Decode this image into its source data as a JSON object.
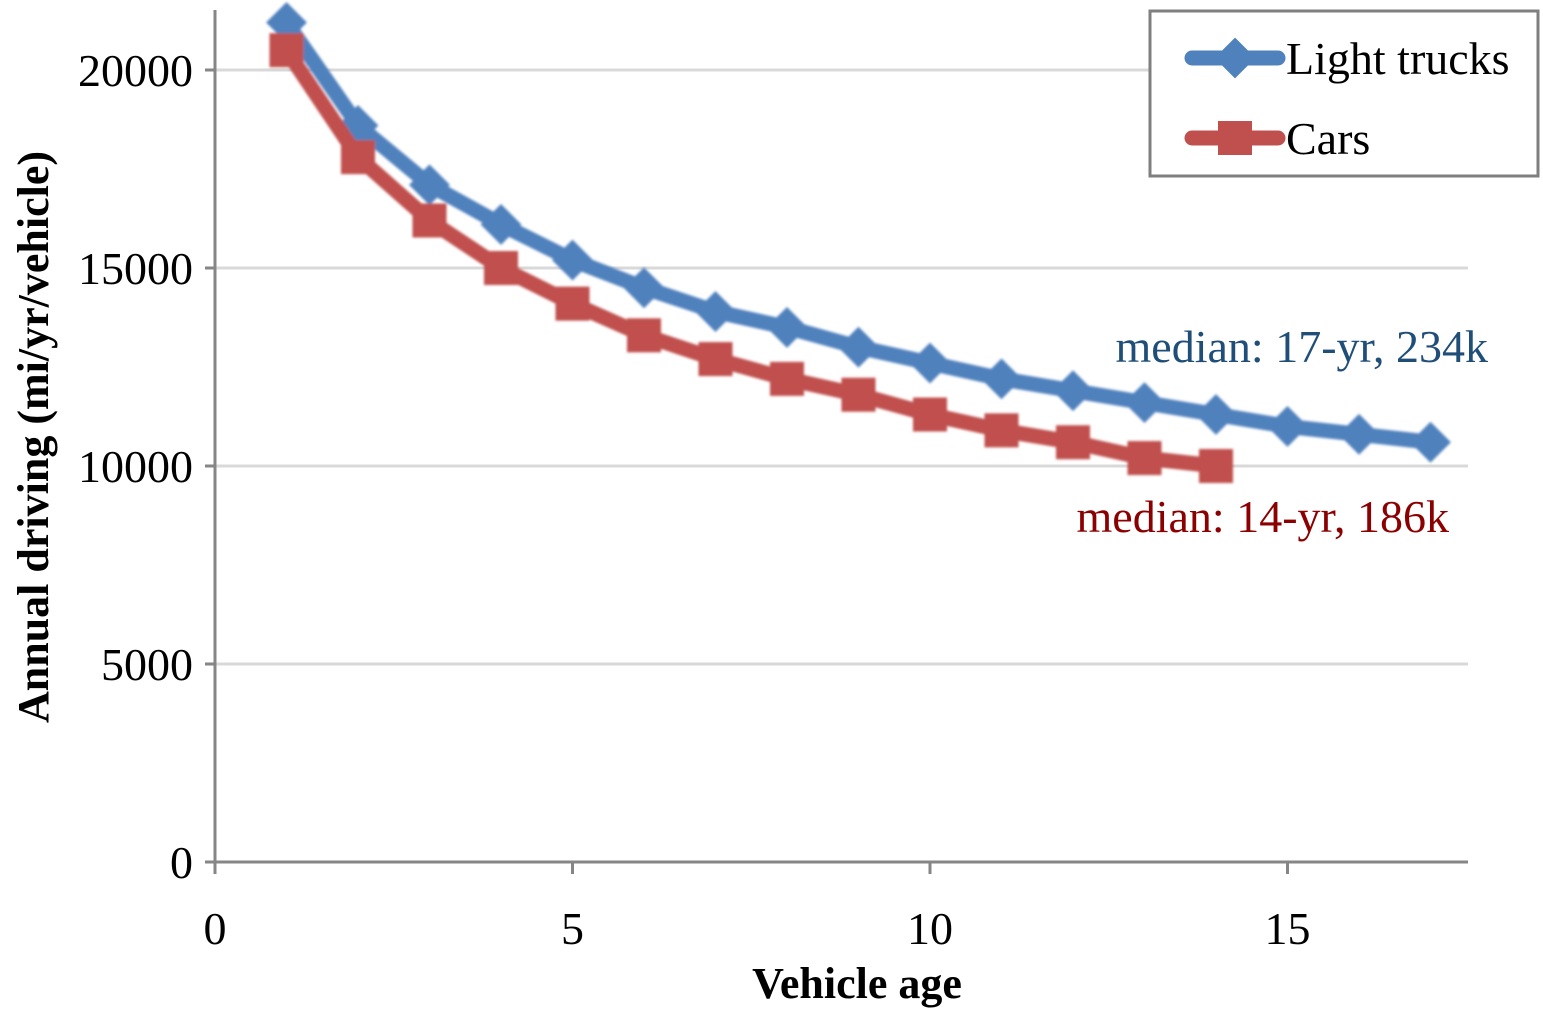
{
  "chart_data": {
    "type": "line",
    "xlabel": "Vehicle age",
    "ylabel": "Annual driving (mi/yr/vehicle)",
    "xlim": [
      0,
      17.5
    ],
    "ylim": [
      0,
      21500
    ],
    "xticks": [
      0,
      5,
      10,
      15
    ],
    "yticks": [
      0,
      5000,
      10000,
      15000,
      20000
    ],
    "grid": "horizontal",
    "legend_position": "top-right",
    "series": [
      {
        "name": "Light trucks",
        "marker": "diamond",
        "color": "#4F81BD",
        "x": [
          1,
          2,
          3,
          4,
          5,
          6,
          7,
          8,
          9,
          10,
          11,
          12,
          13,
          14,
          15,
          16,
          17
        ],
        "values": [
          21200,
          18600,
          17100,
          16100,
          15200,
          14500,
          13900,
          13500,
          13000,
          12600,
          12200,
          11900,
          11600,
          11300,
          11000,
          10800,
          10600
        ]
      },
      {
        "name": "Cars",
        "marker": "square",
        "color": "#C0504D",
        "x": [
          1,
          2,
          3,
          4,
          5,
          6,
          7,
          8,
          9,
          10,
          11,
          12,
          13,
          14
        ],
        "values": [
          20500,
          17800,
          16200,
          15000,
          14100,
          13300,
          12700,
          12200,
          11800,
          11300,
          10900,
          10600,
          10200,
          10000
        ]
      }
    ],
    "annotations": [
      {
        "text": "median: 17-yr, 234k",
        "series": "Light trucks",
        "color": "#1F4E79"
      },
      {
        "text": "median: 14-yr, 186k",
        "series": "Cars",
        "color": "#8B0000"
      }
    ]
  }
}
